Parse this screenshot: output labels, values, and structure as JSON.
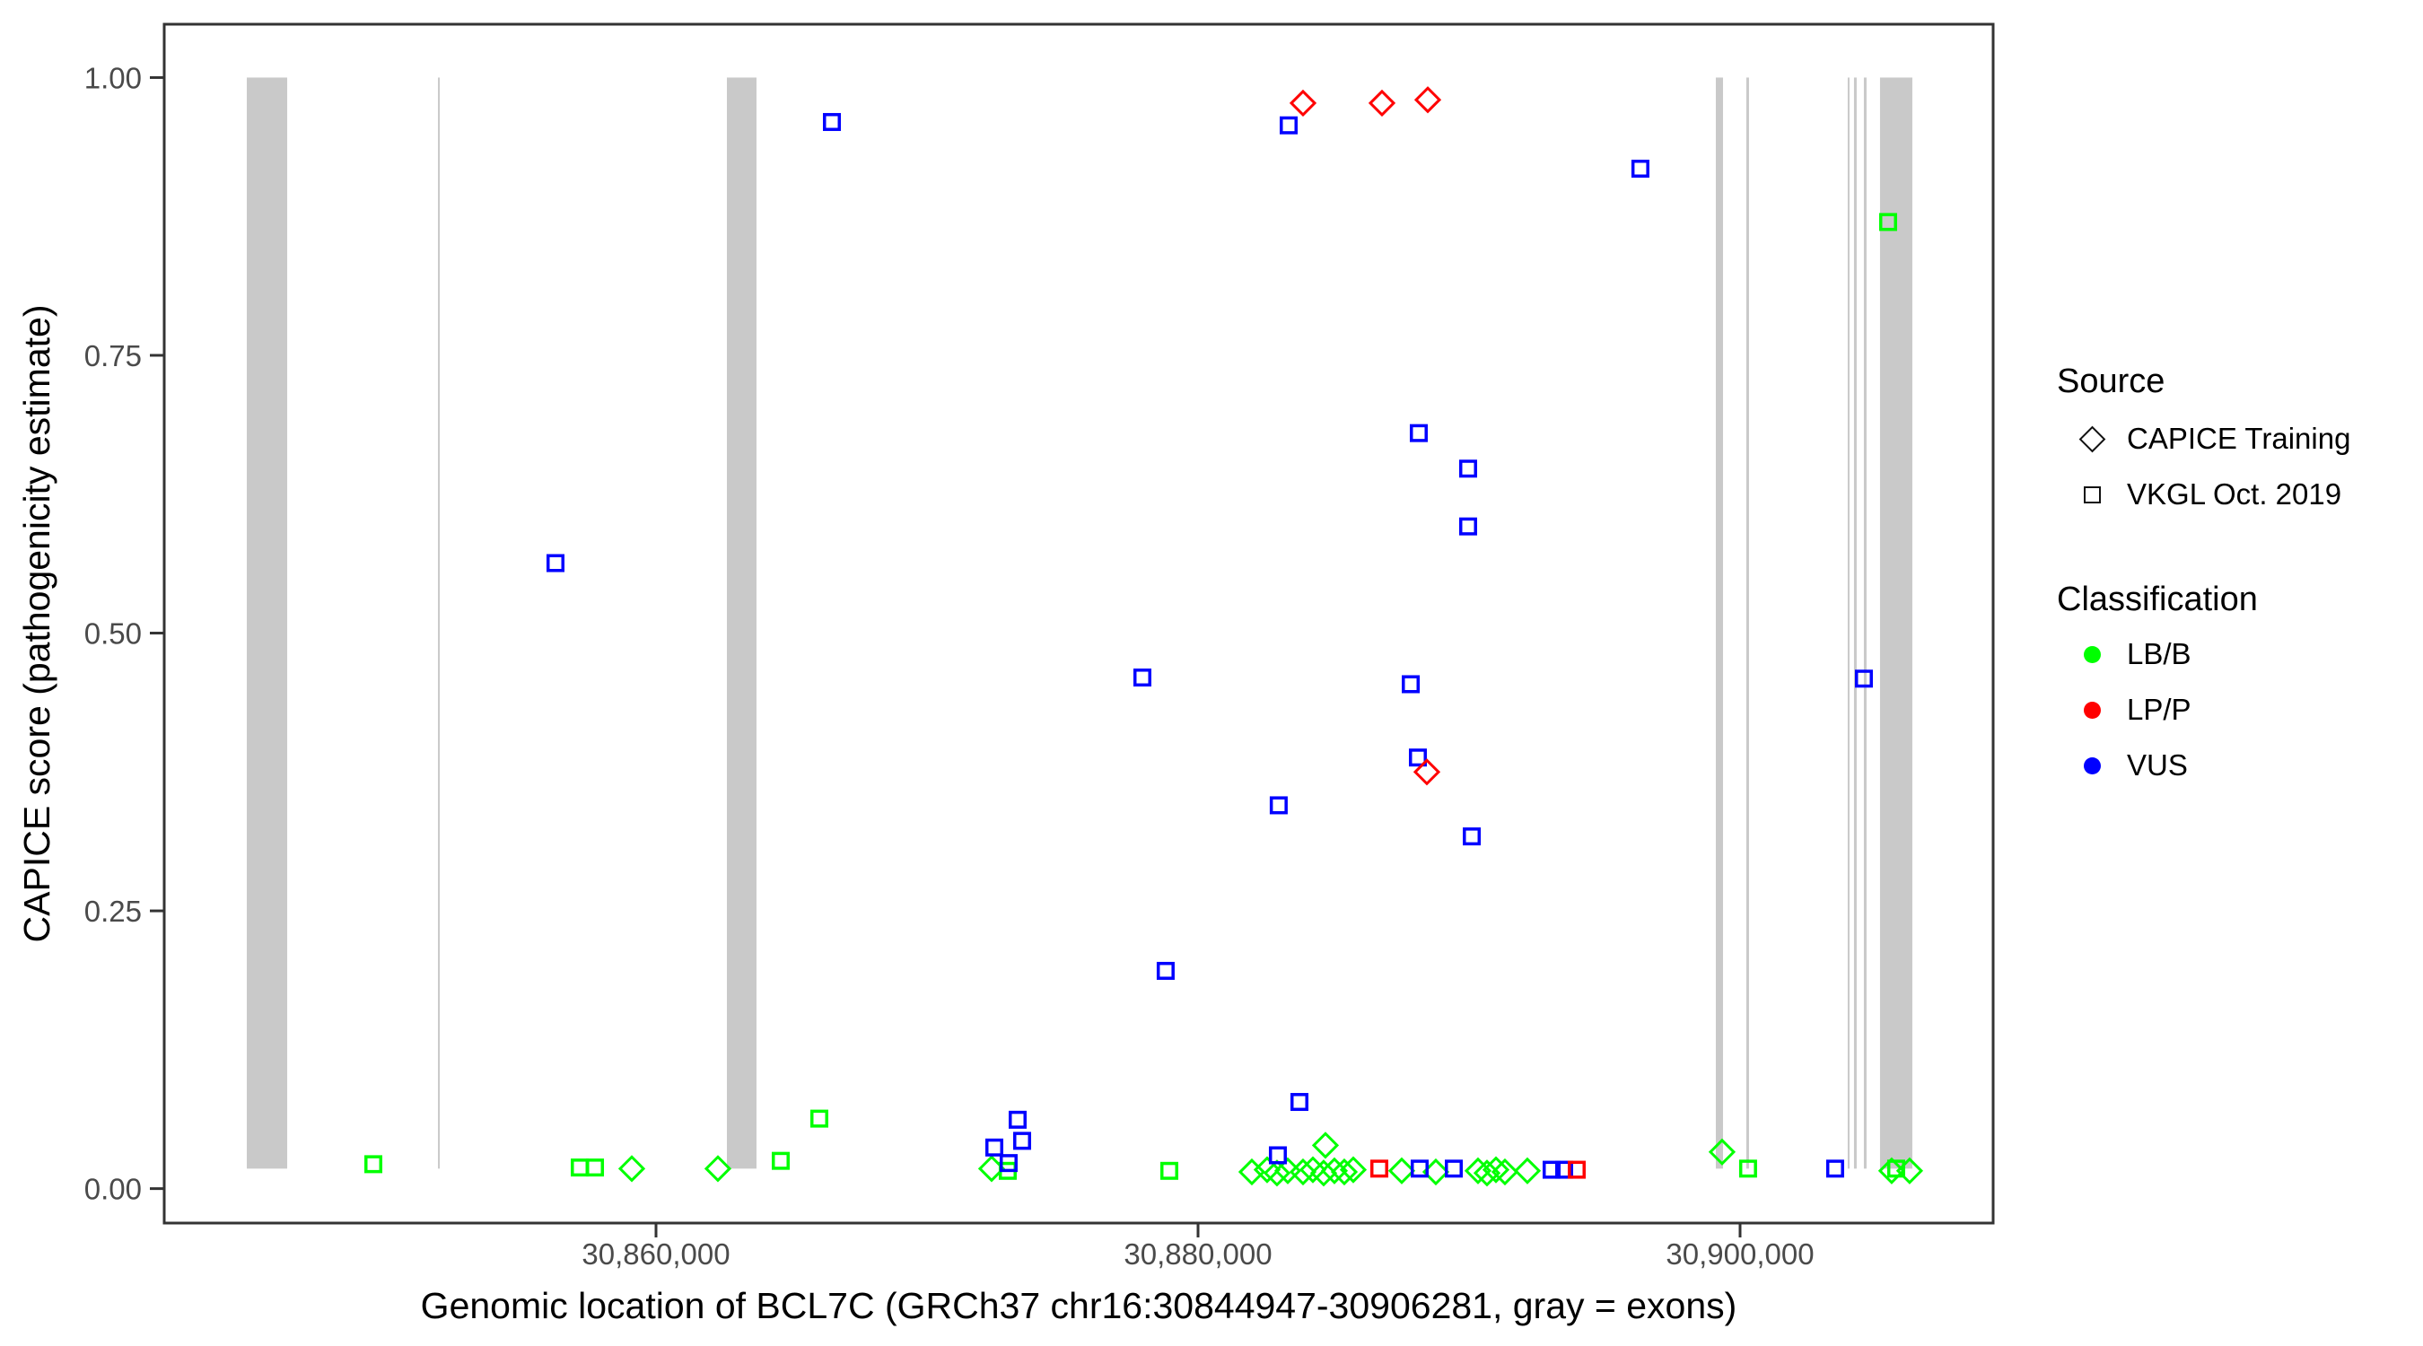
{
  "chart_data": {
    "type": "scatter",
    "title": "",
    "xlabel": "Genomic location of BCL7C (GRCh37 chr16:30844947-30906281, gray = exons)",
    "ylabel": "CAPICE score (pathogenicity estimate)",
    "xlim": [
      30841854,
      30909338
    ],
    "ylim": [
      -0.031,
      1.048
    ],
    "grid": "off",
    "legend_position": "right",
    "x_ticks": [
      {
        "value": 30860000,
        "label": "30,860,000"
      },
      {
        "value": 30880000,
        "label": "30,880,000"
      },
      {
        "value": 30900000,
        "label": "30,900,000"
      }
    ],
    "y_ticks": [
      {
        "value": 0.0,
        "label": "0.00"
      },
      {
        "value": 0.25,
        "label": "0.25"
      },
      {
        "value": 0.5,
        "label": "0.50"
      },
      {
        "value": 0.75,
        "label": "0.75"
      },
      {
        "value": 1.0,
        "label": "1.00"
      }
    ],
    "exon_color": "#C9C9C9",
    "exon_score_span": [
      0.018,
      1.0
    ],
    "exons": [
      [
        30844901,
        30846391
      ],
      [
        30851955,
        30852021
      ],
      [
        30862615,
        30863708
      ],
      [
        30899105,
        30899370
      ],
      [
        30900231,
        30900330
      ],
      [
        30903972,
        30904038
      ],
      [
        30904204,
        30904303
      ],
      [
        30904568,
        30904667
      ],
      [
        30905164,
        30906356
      ]
    ],
    "class_colors": {
      "LB/B": "#00FF00",
      "LP/P": "#FF0000",
      "VUS": "#0000FF"
    },
    "source_shapes": {
      "CAPICE Training": "diamond",
      "VKGL Oct. 2019": "square"
    },
    "points": [
      {
        "pos": 30849570,
        "score": 0.022,
        "source": "VKGL Oct. 2019",
        "classification": "LB/B"
      },
      {
        "pos": 30857186,
        "score": 0.019,
        "source": "VKGL Oct. 2019",
        "classification": "LB/B"
      },
      {
        "pos": 30857749,
        "score": 0.019,
        "source": "VKGL Oct. 2019",
        "classification": "LB/B"
      },
      {
        "pos": 30864602,
        "score": 0.025,
        "source": "VKGL Oct. 2019",
        "classification": "LB/B"
      },
      {
        "pos": 30866026,
        "score": 0.063,
        "source": "VKGL Oct. 2019",
        "classification": "LB/B"
      },
      {
        "pos": 30872979,
        "score": 0.016,
        "source": "VKGL Oct. 2019",
        "classification": "LB/B"
      },
      {
        "pos": 30878940,
        "score": 0.016,
        "source": "VKGL Oct. 2019",
        "classification": "LB/B"
      },
      {
        "pos": 30900296,
        "score": 0.018,
        "source": "VKGL Oct. 2019",
        "classification": "LB/B"
      },
      {
        "pos": 30905463,
        "score": 0.87,
        "source": "VKGL Oct. 2019",
        "classification": "LB/B"
      },
      {
        "pos": 30905760,
        "score": 0.018,
        "source": "VKGL Oct. 2019",
        "classification": "LB/B"
      },
      {
        "pos": 30859106,
        "score": 0.018,
        "source": "CAPICE Training",
        "classification": "LB/B"
      },
      {
        "pos": 30862284,
        "score": 0.018,
        "source": "CAPICE Training",
        "classification": "LB/B"
      },
      {
        "pos": 30872383,
        "score": 0.018,
        "source": "CAPICE Training",
        "classification": "LB/B"
      },
      {
        "pos": 30881986,
        "score": 0.015,
        "source": "CAPICE Training",
        "classification": "LB/B"
      },
      {
        "pos": 30882549,
        "score": 0.017,
        "source": "CAPICE Training",
        "classification": "LB/B"
      },
      {
        "pos": 30882913,
        "score": 0.014,
        "source": "CAPICE Training",
        "classification": "LB/B"
      },
      {
        "pos": 30883311,
        "score": 0.016,
        "source": "CAPICE Training",
        "classification": "LB/B"
      },
      {
        "pos": 30883874,
        "score": 0.015,
        "source": "CAPICE Training",
        "classification": "LB/B"
      },
      {
        "pos": 30884238,
        "score": 0.017,
        "source": "CAPICE Training",
        "classification": "LB/B"
      },
      {
        "pos": 30884635,
        "score": 0.014,
        "source": "CAPICE Training",
        "classification": "LB/B"
      },
      {
        "pos": 30885032,
        "score": 0.016,
        "source": "CAPICE Training",
        "classification": "LB/B"
      },
      {
        "pos": 30885397,
        "score": 0.015,
        "source": "CAPICE Training",
        "classification": "LB/B"
      },
      {
        "pos": 30885728,
        "score": 0.017,
        "source": "CAPICE Training",
        "classification": "LB/B"
      },
      {
        "pos": 30884701,
        "score": 0.039,
        "source": "CAPICE Training",
        "classification": "LB/B"
      },
      {
        "pos": 30887516,
        "score": 0.016,
        "source": "CAPICE Training",
        "classification": "LB/B"
      },
      {
        "pos": 30888774,
        "score": 0.015,
        "source": "CAPICE Training",
        "classification": "LB/B"
      },
      {
        "pos": 30890331,
        "score": 0.016,
        "source": "CAPICE Training",
        "classification": "LB/B"
      },
      {
        "pos": 30890662,
        "score": 0.014,
        "source": "CAPICE Training",
        "classification": "LB/B"
      },
      {
        "pos": 30890993,
        "score": 0.017,
        "source": "CAPICE Training",
        "classification": "LB/B"
      },
      {
        "pos": 30891324,
        "score": 0.015,
        "source": "CAPICE Training",
        "classification": "LB/B"
      },
      {
        "pos": 30892152,
        "score": 0.016,
        "source": "CAPICE Training",
        "classification": "LB/B"
      },
      {
        "pos": 30899336,
        "score": 0.033,
        "source": "CAPICE Training",
        "classification": "LB/B"
      },
      {
        "pos": 30905594,
        "score": 0.016,
        "source": "CAPICE Training",
        "classification": "LB/B"
      },
      {
        "pos": 30906256,
        "score": 0.016,
        "source": "CAPICE Training",
        "classification": "LB/B"
      },
      {
        "pos": 30856291,
        "score": 0.563,
        "source": "VKGL Oct. 2019",
        "classification": "VUS"
      },
      {
        "pos": 30866490,
        "score": 0.96,
        "source": "VKGL Oct. 2019",
        "classification": "VUS"
      },
      {
        "pos": 30872483,
        "score": 0.037,
        "source": "VKGL Oct. 2019",
        "classification": "VUS"
      },
      {
        "pos": 30873012,
        "score": 0.023,
        "source": "VKGL Oct. 2019",
        "classification": "VUS"
      },
      {
        "pos": 30873344,
        "score": 0.062,
        "source": "VKGL Oct. 2019",
        "classification": "VUS"
      },
      {
        "pos": 30873510,
        "score": 0.043,
        "source": "VKGL Oct. 2019",
        "classification": "VUS"
      },
      {
        "pos": 30877946,
        "score": 0.46,
        "source": "VKGL Oct. 2019",
        "classification": "VUS"
      },
      {
        "pos": 30878806,
        "score": 0.196,
        "source": "VKGL Oct. 2019",
        "classification": "VUS"
      },
      {
        "pos": 30882946,
        "score": 0.03,
        "source": "VKGL Oct. 2019",
        "classification": "VUS"
      },
      {
        "pos": 30882977,
        "score": 0.345,
        "source": "VKGL Oct. 2019",
        "classification": "VUS"
      },
      {
        "pos": 30883344,
        "score": 0.957,
        "source": "VKGL Oct. 2019",
        "classification": "VUS"
      },
      {
        "pos": 30883741,
        "score": 0.078,
        "source": "VKGL Oct. 2019",
        "classification": "VUS"
      },
      {
        "pos": 30887848,
        "score": 0.454,
        "source": "VKGL Oct. 2019",
        "classification": "VUS"
      },
      {
        "pos": 30888112,
        "score": 0.388,
        "source": "VKGL Oct. 2019",
        "classification": "VUS"
      },
      {
        "pos": 30888145,
        "score": 0.68,
        "source": "VKGL Oct. 2019",
        "classification": "VUS"
      },
      {
        "pos": 30888178,
        "score": 0.018,
        "source": "VKGL Oct. 2019",
        "classification": "VUS"
      },
      {
        "pos": 30889437,
        "score": 0.018,
        "source": "VKGL Oct. 2019",
        "classification": "VUS"
      },
      {
        "pos": 30889966,
        "score": 0.648,
        "source": "VKGL Oct. 2019",
        "classification": "VUS"
      },
      {
        "pos": 30889966,
        "score": 0.596,
        "source": "VKGL Oct. 2019",
        "classification": "VUS"
      },
      {
        "pos": 30890100,
        "score": 0.317,
        "source": "VKGL Oct. 2019",
        "classification": "VUS"
      },
      {
        "pos": 30893046,
        "score": 0.017,
        "source": "VKGL Oct. 2019",
        "classification": "VUS"
      },
      {
        "pos": 30893510,
        "score": 0.017,
        "source": "VKGL Oct. 2019",
        "classification": "VUS"
      },
      {
        "pos": 30896322,
        "score": 0.918,
        "source": "VKGL Oct. 2019",
        "classification": "VUS"
      },
      {
        "pos": 30903508,
        "score": 0.018,
        "source": "VKGL Oct. 2019",
        "classification": "VUS"
      },
      {
        "pos": 30904569,
        "score": 0.459,
        "source": "VKGL Oct. 2019",
        "classification": "VUS"
      },
      {
        "pos": 30886688,
        "score": 0.018,
        "source": "VKGL Oct. 2019",
        "classification": "LP/P"
      },
      {
        "pos": 30893973,
        "score": 0.017,
        "source": "VKGL Oct. 2019",
        "classification": "LP/P"
      },
      {
        "pos": 30883874,
        "score": 0.977,
        "source": "CAPICE Training",
        "classification": "LP/P"
      },
      {
        "pos": 30886788,
        "score": 0.977,
        "source": "CAPICE Training",
        "classification": "LP/P"
      },
      {
        "pos": 30888477,
        "score": 0.98,
        "source": "CAPICE Training",
        "classification": "LP/P"
      },
      {
        "pos": 30888443,
        "score": 0.375,
        "source": "CAPICE Training",
        "classification": "LP/P"
      }
    ]
  },
  "legend": {
    "source_title": "Source",
    "source_items": [
      {
        "label": "CAPICE Training",
        "shape": "diamond"
      },
      {
        "label": "VKGL Oct. 2019",
        "shape": "square"
      }
    ],
    "classification_title": "Classification",
    "classification_items": [
      {
        "label": "LB/B",
        "color": "#00FF00"
      },
      {
        "label": "LP/P",
        "color": "#FF0000"
      },
      {
        "label": "VUS",
        "color": "#0000FF"
      }
    ]
  }
}
